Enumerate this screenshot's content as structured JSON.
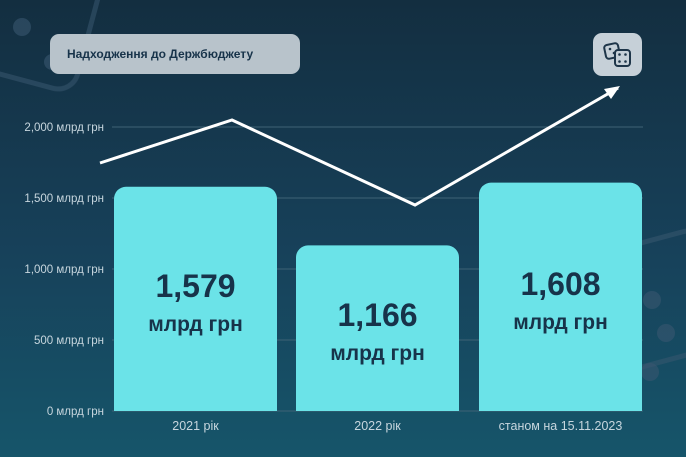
{
  "header": {
    "title": "Надходження до Держбюджету",
    "icon": "dice-icon"
  },
  "chart_data": {
    "type": "bar",
    "title": "Надходження до Держбюджету",
    "xlabel": "",
    "ylabel": "",
    "categories": [
      "2021 рік",
      "2022 рік",
      "станом на 15.11.2023"
    ],
    "values": [
      1579,
      1166,
      1608
    ],
    "value_labels": [
      {
        "number": "1,579",
        "unit": "млрд грн"
      },
      {
        "number": "1,166",
        "unit": "млрд грн"
      },
      {
        "number": "1,608",
        "unit": "млрд грн"
      }
    ],
    "ylim": [
      0,
      2000
    ],
    "yticks": [
      0,
      500,
      1000,
      1500,
      2000
    ],
    "ytick_labels": [
      "0 млрд грн",
      "500 млрд грн",
      "1,000 млрд грн",
      "1,500 млрд грн",
      "2,000 млрд грн"
    ],
    "grid": true,
    "legend": "none",
    "trend_line": {
      "shape": "zigzag rising to arrow",
      "arrow_end": true
    },
    "colors": {
      "bar": "#6be3e8",
      "bar_text": "#17334a",
      "grid": "#3e6275",
      "axis_text": "#c7d6de",
      "trend": "#ffffff"
    }
  }
}
